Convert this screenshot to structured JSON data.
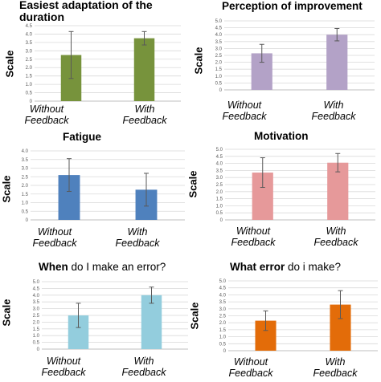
{
  "chart_data": [
    {
      "type": "bar",
      "title": "Easiest adaptation of the duration",
      "ylabel": "Scale",
      "categories": [
        "Without Feedback",
        "With Feedback"
      ],
      "category_lines": [
        [
          "Without",
          "Feedback"
        ],
        [
          "With",
          "Feedback"
        ]
      ],
      "values": [
        2.75,
        3.75
      ],
      "error": [
        1.4,
        0.4
      ],
      "ylim": [
        0,
        4.5
      ],
      "yticks": [
        "0",
        "0.5",
        "1.0",
        "1.5",
        "2.0",
        "2.5",
        "3.0",
        "3.5",
        "4.0",
        "4.5"
      ],
      "grid": true,
      "color": "#77933c"
    },
    {
      "type": "bar",
      "title": "Perception of improvement",
      "ylabel": "Scale",
      "categories": [
        "Without Feedback",
        "With Feedback"
      ],
      "category_lines": [
        [
          "Without",
          "Feedback"
        ],
        [
          "With",
          "Feedback"
        ]
      ],
      "values": [
        2.65,
        4.0
      ],
      "error": [
        0.65,
        0.45
      ],
      "ylim": [
        0,
        5.0
      ],
      "yticks": [
        "0",
        "0.5",
        "1.0",
        "1.5",
        "2.0",
        "2.5",
        "3.0",
        "3.5",
        "4.0",
        "4.5",
        "5.0"
      ],
      "grid": true,
      "color": "#b3a2c7"
    },
    {
      "type": "bar",
      "title": "Fatigue",
      "ylabel": "Scale",
      "categories": [
        "Without Feedback",
        "With Feedback"
      ],
      "category_lines": [
        [
          "Without",
          "Feedback"
        ],
        [
          "With",
          "Feedback"
        ]
      ],
      "values": [
        2.6,
        1.75
      ],
      "error": [
        0.95,
        0.95
      ],
      "ylim": [
        0,
        4.0
      ],
      "yticks": [
        "0",
        "0.5",
        "1.0",
        "1.5",
        "2.0",
        "2.5",
        "3.0",
        "3.5",
        "4.0"
      ],
      "grid": true,
      "color": "#4f81bd"
    },
    {
      "type": "bar",
      "title": "Motivation",
      "ylabel": "Scale",
      "categories": [
        "Without Feedback",
        "With Feedback"
      ],
      "category_lines": [
        [
          "Without",
          "Feedback"
        ],
        [
          "With",
          "Feedback"
        ]
      ],
      "values": [
        3.35,
        4.05
      ],
      "error": [
        1.05,
        0.65
      ],
      "ylim": [
        0,
        5.0
      ],
      "yticks": [
        "0",
        "0.5",
        "1.0",
        "1.5",
        "2.0",
        "2.5",
        "3.0",
        "3.5",
        "4.0",
        "4.5",
        "5.0"
      ],
      "grid": true,
      "color": "#e6999a"
    },
    {
      "type": "bar",
      "title": "When do I make an error?",
      "title_bold": "When",
      "title_rest": " do I make an error?",
      "ylabel": "Scale",
      "categories": [
        "Without Feedback",
        "With Feedback"
      ],
      "category_lines": [
        [
          "Without",
          "Feedback"
        ],
        [
          "With",
          "Feedback"
        ]
      ],
      "values": [
        2.5,
        4.0
      ],
      "error": [
        0.9,
        0.6
      ],
      "ylim": [
        0,
        5.0
      ],
      "yticks": [
        "0",
        "0.5",
        "1.0",
        "1.5",
        "2.0",
        "2.5",
        "3.0",
        "3.5",
        "4.0",
        "4.5",
        "5.0"
      ],
      "grid": true,
      "color": "#93cddd"
    },
    {
      "type": "bar",
      "title": "What error do i make?",
      "title_bold": "What error",
      "title_rest": " do i make?",
      "ylabel": "Scale",
      "categories": [
        "Without Feedback",
        "With Feedback"
      ],
      "category_lines": [
        [
          "Without",
          "Feedback"
        ],
        [
          "With",
          "Feedback"
        ]
      ],
      "values": [
        2.15,
        3.3
      ],
      "error": [
        0.7,
        1.0
      ],
      "ylim": [
        0,
        5.0
      ],
      "yticks": [
        "0",
        "0.5",
        "1.0",
        "1.5",
        "2.0",
        "2.5",
        "3.0",
        "3.5",
        "4.0",
        "4.5",
        "5.0"
      ],
      "grid": true,
      "color": "#e36c09"
    }
  ]
}
